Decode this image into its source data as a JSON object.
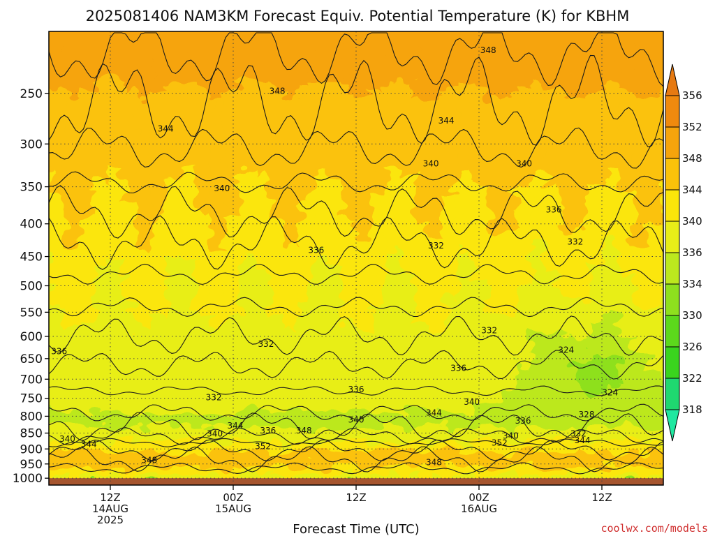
{
  "chart_data": {
    "type": "heatmap",
    "title": "2025081406 NAM3KM Forecast Equiv. Potential Temperature (K) for KBHM",
    "xlabel": "Forecast Time (UTC)",
    "ylabel": "",
    "credit": "coolwx.com/models",
    "y_scale": "log-pressure",
    "y_ticks": [
      250,
      300,
      350,
      400,
      450,
      500,
      550,
      600,
      650,
      700,
      750,
      800,
      850,
      900,
      950,
      1000
    ],
    "ylim": [
      200,
      1025
    ],
    "x_ticks": [
      {
        "hour": 6,
        "line1": "12Z",
        "line2": "14AUG",
        "line3": "2025"
      },
      {
        "hour": 18,
        "line1": "00Z",
        "line2": "15AUG",
        "line3": ""
      },
      {
        "hour": 30,
        "line1": "12Z",
        "line2": "",
        "line3": ""
      },
      {
        "hour": 42,
        "line1": "00Z",
        "line2": "16AUG",
        "line3": ""
      },
      {
        "hour": 54,
        "line1": "12Z",
        "line2": "",
        "line3": ""
      }
    ],
    "xlim": [
      0,
      60
    ],
    "grid": true,
    "colorbar": {
      "levels": [
        318,
        322,
        326,
        330,
        334,
        336,
        340,
        344,
        348,
        352,
        356
      ],
      "colors": [
        "#1fe8a0",
        "#1fd870",
        "#3ad41e",
        "#5cd81c",
        "#8ee01e",
        "#bce81e",
        "#e8ee18",
        "#fbe60a",
        "#fbc20a",
        "#f6a40c",
        "#f08a0e",
        "#e67a12"
      ]
    },
    "surface_color": "#a6552e",
    "contour_labels": [
      {
        "text": "348",
        "hour": 42.9,
        "p": 214
      },
      {
        "text": "348",
        "hour": 22.3,
        "p": 248
      },
      {
        "text": "344",
        "hour": 38.8,
        "p": 276
      },
      {
        "text": "344",
        "hour": 11.4,
        "p": 284
      },
      {
        "text": "340",
        "hour": 37.3,
        "p": 322
      },
      {
        "text": "340",
        "hour": 46.4,
        "p": 322
      },
      {
        "text": "340",
        "hour": 16.9,
        "p": 352
      },
      {
        "text": "336",
        "hour": 49.3,
        "p": 380
      },
      {
        "text": "332",
        "hour": 37.8,
        "p": 433
      },
      {
        "text": "332",
        "hour": 51.4,
        "p": 427
      },
      {
        "text": "336",
        "hour": 26.1,
        "p": 440
      },
      {
        "text": "332",
        "hour": 43.0,
        "p": 587
      },
      {
        "text": "332",
        "hour": 21.2,
        "p": 617
      },
      {
        "text": "324",
        "hour": 50.5,
        "p": 630
      },
      {
        "text": "336",
        "hour": 1.0,
        "p": 633
      },
      {
        "text": "336",
        "hour": 40.0,
        "p": 673
      },
      {
        "text": "336",
        "hour": 30.0,
        "p": 726
      },
      {
        "text": "332",
        "hour": 16.1,
        "p": 748
      },
      {
        "text": "324",
        "hour": 54.8,
        "p": 735
      },
      {
        "text": "340",
        "hour": 41.3,
        "p": 760
      },
      {
        "text": "344",
        "hour": 37.6,
        "p": 790
      },
      {
        "text": "340",
        "hour": 30.0,
        "p": 810
      },
      {
        "text": "328",
        "hour": 52.5,
        "p": 795
      },
      {
        "text": "336",
        "hour": 46.3,
        "p": 813
      },
      {
        "text": "344",
        "hour": 18.2,
        "p": 828
      },
      {
        "text": "336",
        "hour": 21.4,
        "p": 843
      },
      {
        "text": "348",
        "hour": 24.9,
        "p": 843
      },
      {
        "text": "340",
        "hour": 16.2,
        "p": 852
      },
      {
        "text": "332",
        "hour": 51.7,
        "p": 852
      },
      {
        "text": "340",
        "hour": 1.8,
        "p": 868
      },
      {
        "text": "340",
        "hour": 45.1,
        "p": 858
      },
      {
        "text": "344",
        "hour": 3.9,
        "p": 885
      },
      {
        "text": "344",
        "hour": 52.1,
        "p": 873
      },
      {
        "text": "352",
        "hour": 20.9,
        "p": 892
      },
      {
        "text": "352",
        "hour": 44.0,
        "p": 880
      },
      {
        "text": "348",
        "hour": 9.8,
        "p": 937
      },
      {
        "text": "348",
        "hour": 37.6,
        "p": 945
      }
    ]
  }
}
